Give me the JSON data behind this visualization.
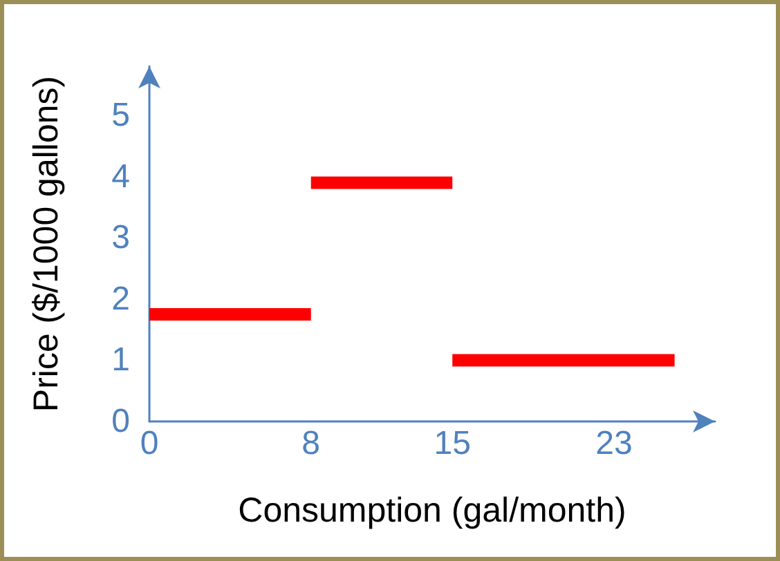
{
  "chart_data": {
    "type": "line",
    "xlabel": "Consumption (gal/month)",
    "ylabel": "Price ($/1000 gallons)",
    "xlim": [
      0,
      28
    ],
    "xticks": [
      0,
      8,
      15,
      23
    ],
    "ylim": [
      0,
      5.8
    ],
    "yticks": [
      0,
      1,
      2,
      3,
      4,
      5
    ],
    "marker": "none",
    "series": [
      {
        "color": "#ff0000",
        "x": [
          0,
          8
        ],
        "values": [
          1.75,
          1.75
        ]
      },
      {
        "color": "#ff0000",
        "x": [
          8,
          15
        ],
        "values": [
          3.9,
          3.9
        ]
      },
      {
        "color": "#ff0000",
        "x": [
          15,
          26
        ],
        "values": [
          1.0,
          1.0
        ]
      }
    ]
  }
}
